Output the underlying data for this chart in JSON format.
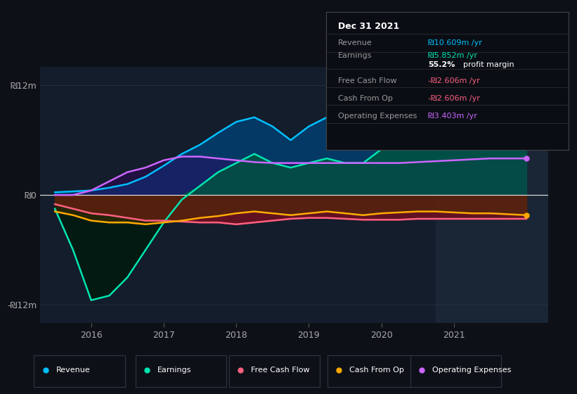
{
  "bg_color": "#0d1117",
  "plot_bg_color": "#141d2b",
  "highlight_bg_color": "#1a2535",
  "grid_color": "#2a3a4a",
  "zero_line_color": "#ffffff",
  "ylim": [
    -14,
    14
  ],
  "yticks": [
    -12,
    0,
    12
  ],
  "ytick_labels": [
    "-₪12m",
    "₪0",
    "₪12m"
  ],
  "xlim": [
    2015.3,
    2022.3
  ],
  "xticks": [
    2016,
    2017,
    2018,
    2019,
    2020,
    2021
  ],
  "highlight_x_start": 2020.75,
  "highlight_x_end": 2022.3,
  "revenue": {
    "x": [
      2015.5,
      2015.75,
      2016.0,
      2016.25,
      2016.5,
      2016.75,
      2017.0,
      2017.25,
      2017.5,
      2017.75,
      2018.0,
      2018.25,
      2018.5,
      2018.75,
      2019.0,
      2019.25,
      2019.5,
      2019.75,
      2020.0,
      2020.25,
      2020.5,
      2020.75,
      2021.0,
      2021.25,
      2021.5,
      2021.75,
      2022.0
    ],
    "y": [
      0.3,
      0.4,
      0.5,
      0.8,
      1.2,
      2.0,
      3.2,
      4.5,
      5.5,
      6.8,
      8.0,
      8.5,
      7.5,
      6.0,
      7.5,
      8.5,
      8.0,
      7.2,
      8.5,
      9.0,
      8.8,
      9.0,
      9.5,
      10.0,
      10.5,
      11.0,
      11.8
    ],
    "color": "#00bfff",
    "fill_color": "#003f6f",
    "label": "Revenue"
  },
  "earnings": {
    "x": [
      2015.5,
      2015.75,
      2016.0,
      2016.25,
      2016.5,
      2016.75,
      2017.0,
      2017.25,
      2017.5,
      2017.75,
      2018.0,
      2018.25,
      2018.5,
      2018.75,
      2019.0,
      2019.25,
      2019.5,
      2019.75,
      2020.0,
      2020.25,
      2020.5,
      2020.75,
      2021.0,
      2021.25,
      2021.5,
      2021.75,
      2022.0
    ],
    "y": [
      -1.5,
      -6.0,
      -11.5,
      -11.0,
      -9.0,
      -6.0,
      -3.0,
      -0.5,
      1.0,
      2.5,
      3.5,
      4.5,
      3.5,
      3.0,
      3.5,
      4.0,
      3.5,
      3.5,
      5.0,
      6.5,
      6.0,
      5.5,
      5.5,
      6.5,
      7.5,
      8.0,
      8.5
    ],
    "color": "#00e5b0",
    "fill_color": "#005540",
    "label": "Earnings"
  },
  "free_cash_flow": {
    "x": [
      2015.5,
      2015.75,
      2016.0,
      2016.25,
      2016.5,
      2016.75,
      2017.0,
      2017.25,
      2017.5,
      2017.75,
      2018.0,
      2018.25,
      2018.5,
      2018.75,
      2019.0,
      2019.25,
      2019.5,
      2019.75,
      2020.0,
      2020.25,
      2020.5,
      2020.75,
      2021.0,
      2021.25,
      2021.5,
      2021.75,
      2022.0
    ],
    "y": [
      -1.0,
      -1.5,
      -2.0,
      -2.2,
      -2.5,
      -2.8,
      -2.8,
      -2.9,
      -3.0,
      -3.0,
      -3.2,
      -3.0,
      -2.8,
      -2.6,
      -2.5,
      -2.5,
      -2.6,
      -2.7,
      -2.7,
      -2.7,
      -2.6,
      -2.6,
      -2.6,
      -2.6,
      -2.6,
      -2.6,
      -2.6
    ],
    "color": "#ff6080",
    "fill_color": "#6b1020",
    "label": "Free Cash Flow"
  },
  "cash_from_op": {
    "x": [
      2015.5,
      2015.75,
      2016.0,
      2016.25,
      2016.5,
      2016.75,
      2017.0,
      2017.25,
      2017.5,
      2017.75,
      2018.0,
      2018.25,
      2018.5,
      2018.75,
      2019.0,
      2019.25,
      2019.5,
      2019.75,
      2020.0,
      2020.25,
      2020.5,
      2020.75,
      2021.0,
      2021.25,
      2021.5,
      2021.75,
      2022.0
    ],
    "y": [
      -1.8,
      -2.2,
      -2.8,
      -3.0,
      -3.0,
      -3.2,
      -3.0,
      -2.8,
      -2.5,
      -2.3,
      -2.0,
      -1.8,
      -2.0,
      -2.2,
      -2.0,
      -1.8,
      -2.0,
      -2.2,
      -2.0,
      -1.9,
      -1.8,
      -1.8,
      -1.9,
      -2.0,
      -2.0,
      -2.1,
      -2.2
    ],
    "color": "#ffaa00",
    "fill_color": "#4a3000",
    "label": "Cash From Op"
  },
  "operating_expenses": {
    "x": [
      2015.5,
      2015.75,
      2016.0,
      2016.25,
      2016.5,
      2016.75,
      2017.0,
      2017.25,
      2017.5,
      2017.75,
      2018.0,
      2018.25,
      2018.5,
      2018.75,
      2019.0,
      2019.25,
      2019.5,
      2019.75,
      2020.0,
      2020.25,
      2020.5,
      2020.75,
      2021.0,
      2021.25,
      2021.5,
      2021.75,
      2022.0
    ],
    "y": [
      0.0,
      0.0,
      0.5,
      1.5,
      2.5,
      3.0,
      3.8,
      4.2,
      4.2,
      4.0,
      3.8,
      3.6,
      3.5,
      3.5,
      3.5,
      3.5,
      3.5,
      3.5,
      3.5,
      3.5,
      3.6,
      3.7,
      3.8,
      3.9,
      4.0,
      4.0,
      4.0
    ],
    "color": "#cc66ff",
    "fill_color": "#330066",
    "label": "Operating Expenses"
  },
  "info_box": {
    "title": "Dec 31 2021",
    "rows": [
      {
        "label": "Revenue",
        "value": "₪10.609m /yr",
        "value_color": "#00bfff"
      },
      {
        "label": "Earnings",
        "value": "₪5.852m /yr",
        "value_color": "#00e5b0"
      },
      {
        "label": "",
        "value": "55.2% profit margin",
        "value_color": "#ffffff"
      },
      {
        "label": "Free Cash Flow",
        "value": "-₪2.606m /yr",
        "value_color": "#ff6080"
      },
      {
        "label": "Cash From Op",
        "value": "-₪2.606m /yr",
        "value_color": "#ff6080"
      },
      {
        "label": "Operating Expenses",
        "value": "₪3.403m /yr",
        "value_color": "#cc66ff"
      }
    ]
  },
  "legend_items": [
    {
      "label": "Revenue",
      "color": "#00bfff"
    },
    {
      "label": "Earnings",
      "color": "#00e5b0"
    },
    {
      "label": "Free Cash Flow",
      "color": "#ff6080"
    },
    {
      "label": "Cash From Op",
      "color": "#ffaa00"
    },
    {
      "label": "Operating Expenses",
      "color": "#cc66ff"
    }
  ]
}
